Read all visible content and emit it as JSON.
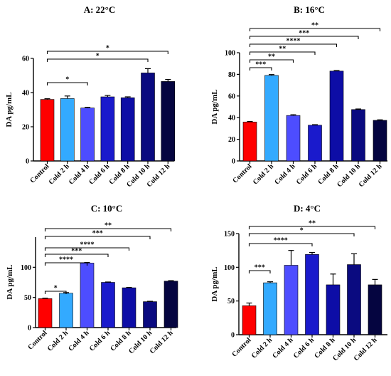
{
  "chart_data": [
    {
      "type": "bar",
      "title": "A: 22°C",
      "ylabel": "DA pg/mL",
      "xlabel": "",
      "ylim": [
        0,
        60
      ],
      "yticks": [
        0,
        20,
        40,
        60
      ],
      "categories": [
        "Control",
        "Cold 2 h",
        "Cold 4 h",
        "Cold 6 h",
        "Cold 8 h",
        "Cold 10 h",
        "Cold 12 h"
      ],
      "values": [
        36,
        36.5,
        31,
        37.5,
        37,
        51.5,
        46.5
      ],
      "errors": [
        0.4,
        1.5,
        0.4,
        0.8,
        0.5,
        2.5,
        1.2
      ],
      "colors": [
        "#ff0000",
        "#33aaff",
        "#4d4dff",
        "#1a1acc",
        "#0d0da6",
        "#0a0a80",
        "#050540"
      ],
      "significance": [
        {
          "from": 0,
          "to": 6,
          "label": "*"
        },
        {
          "from": 0,
          "to": 5,
          "label": "*"
        },
        {
          "from": 0,
          "to": 2,
          "label": "*"
        }
      ]
    },
    {
      "type": "bar",
      "title": "B: 16°C",
      "ylabel": "DA pg/mL",
      "xlabel": "",
      "ylim": [
        0,
        100
      ],
      "yticks": [
        0,
        20,
        40,
        60,
        80,
        100
      ],
      "categories": [
        "Control",
        "Cold 2 h",
        "Cold 4 h",
        "Cold 6 h",
        "Cold 8 h",
        "Cold 10 h",
        "Cold 12 h"
      ],
      "values": [
        36,
        79,
        42,
        33,
        83,
        47.5,
        37.5
      ],
      "errors": [
        0.5,
        0.8,
        0.7,
        0.5,
        0.5,
        0.5,
        0.5
      ],
      "colors": [
        "#ff0000",
        "#33aaff",
        "#4d4dff",
        "#1a1acc",
        "#0d0da6",
        "#0a0a80",
        "#050540"
      ],
      "significance": [
        {
          "from": 0,
          "to": 6,
          "label": "**"
        },
        {
          "from": 0,
          "to": 5,
          "label": "***"
        },
        {
          "from": 0,
          "to": 4,
          "label": "****"
        },
        {
          "from": 0,
          "to": 3,
          "label": "**"
        },
        {
          "from": 0,
          "to": 2,
          "label": "**"
        },
        {
          "from": 0,
          "to": 1,
          "label": "***"
        }
      ]
    },
    {
      "type": "bar",
      "title": "C: 10°C",
      "ylabel": "DA pg/mL",
      "xlabel": "",
      "ylim": [
        0,
        150
      ],
      "yticks": [
        0,
        50,
        100
      ],
      "categories": [
        "Control",
        "Cold 2 h",
        "Cold 4 h",
        "Cold 6 h",
        "Cold 8 h",
        "Cold 10 h",
        "Cold 12 h"
      ],
      "values": [
        48,
        57,
        107,
        75,
        66,
        43,
        77
      ],
      "errors": [
        0.8,
        1.0,
        1.0,
        0.6,
        0.6,
        0.6,
        0.8
      ],
      "colors": [
        "#ff0000",
        "#33aaff",
        "#4d4dff",
        "#1a1acc",
        "#0d0da6",
        "#0a0a80",
        "#050540"
      ],
      "significance": [
        {
          "from": 0,
          "to": 6,
          "label": "**"
        },
        {
          "from": 0,
          "to": 5,
          "label": "***"
        },
        {
          "from": 0,
          "to": 4,
          "label": "****"
        },
        {
          "from": 0,
          "to": 3,
          "label": "***"
        },
        {
          "from": 0,
          "to": 2,
          "label": "****"
        },
        {
          "from": 0,
          "to": 1,
          "label": "*"
        }
      ]
    },
    {
      "type": "bar",
      "title": "D: 4°C",
      "ylabel": "DA pg/mL",
      "xlabel": "",
      "ylim": [
        0,
        150
      ],
      "yticks": [
        0,
        50,
        100,
        150
      ],
      "categories": [
        "Control",
        "Cold 2 h",
        "Cold 4 h",
        "Cold 6 h",
        "Cold 8 h",
        "Cold 10 h",
        "Cold 12 h"
      ],
      "values": [
        43,
        77,
        103,
        119,
        74,
        104,
        74
      ],
      "errors": [
        4,
        1.5,
        22,
        3,
        16,
        16,
        8
      ],
      "colors": [
        "#ff0000",
        "#33aaff",
        "#4d4dff",
        "#1a1acc",
        "#0d0da6",
        "#0a0a80",
        "#050540"
      ],
      "significance": [
        {
          "from": 0,
          "to": 6,
          "label": "**"
        },
        {
          "from": 0,
          "to": 5,
          "label": "*"
        },
        {
          "from": 0,
          "to": 3,
          "label": "****"
        },
        {
          "from": 0,
          "to": 1,
          "label": "***"
        }
      ]
    }
  ]
}
